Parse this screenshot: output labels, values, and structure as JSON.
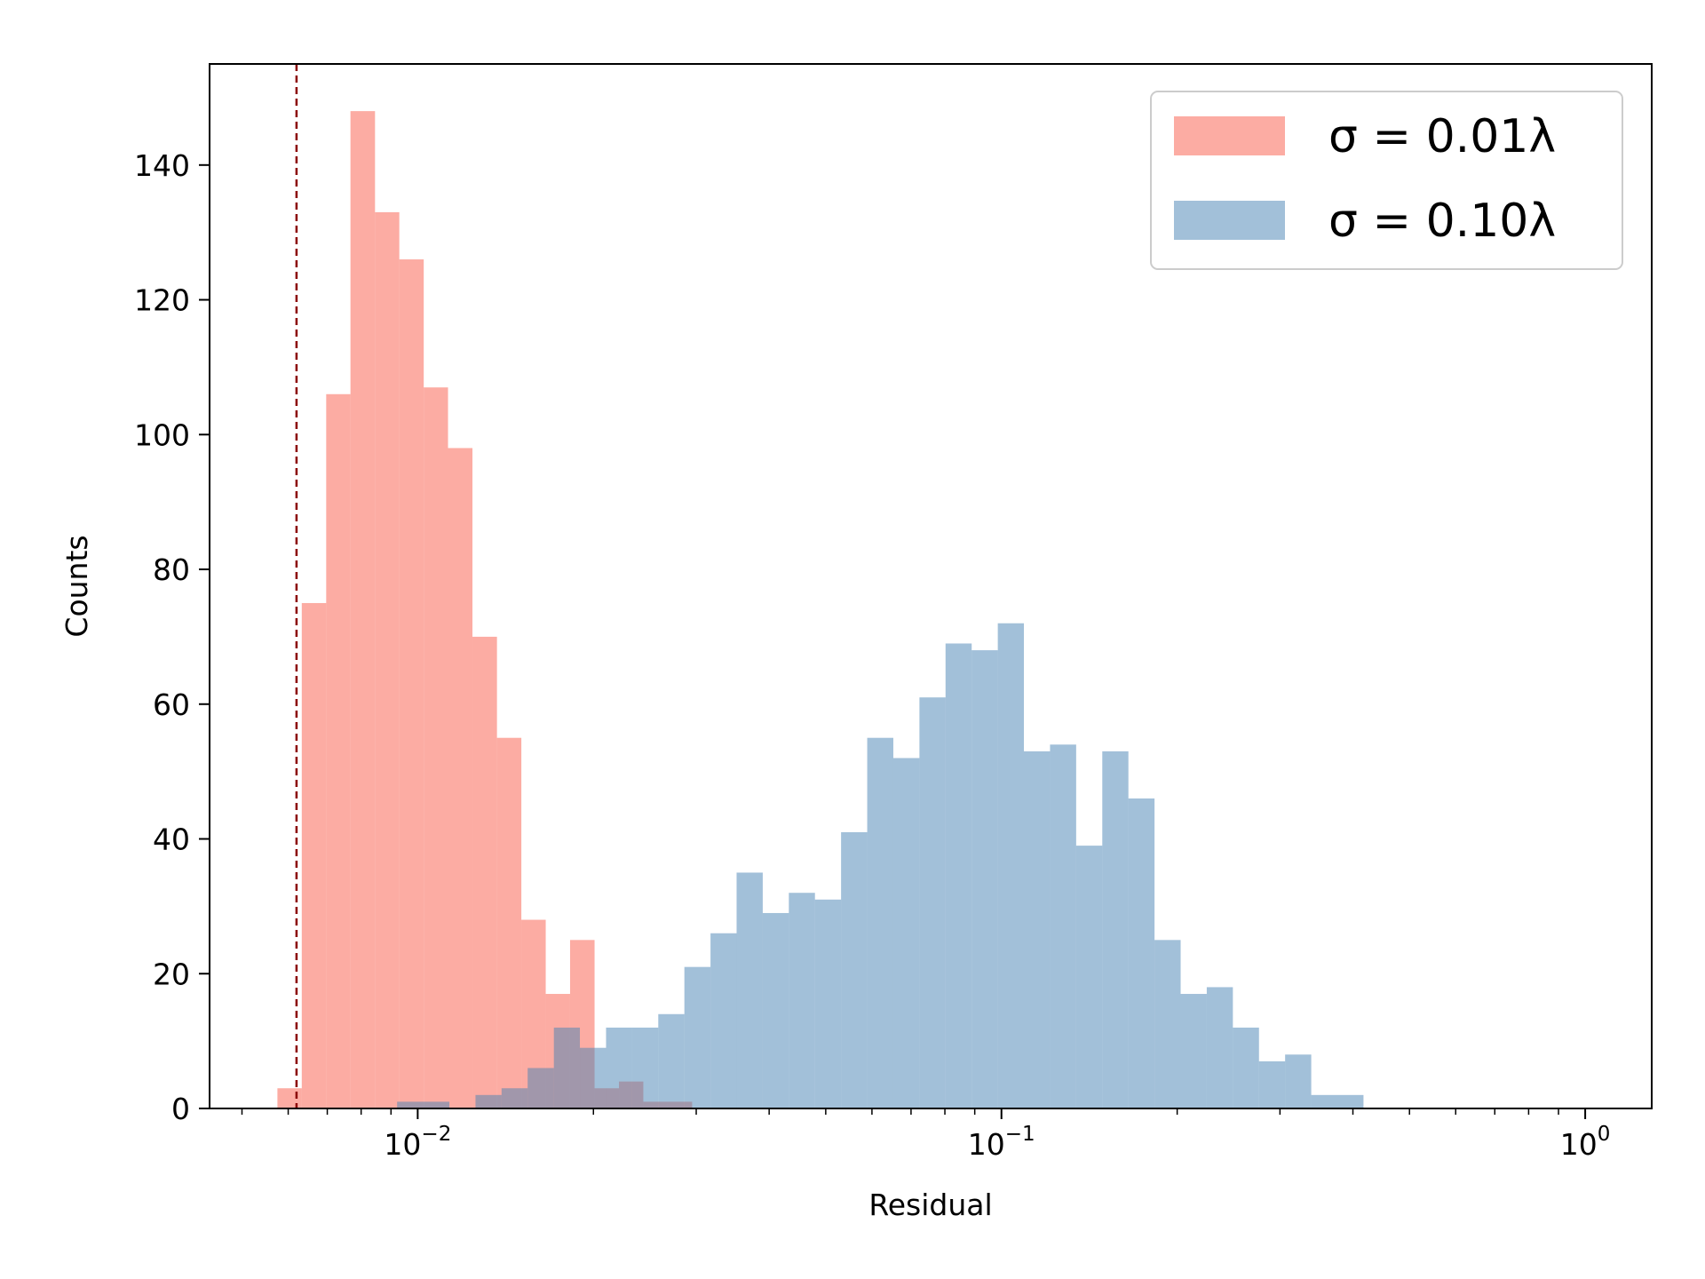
{
  "chart_data": {
    "type": "bar",
    "subtype": "histogram",
    "x_scale": "log",
    "xlabel": "Residual",
    "ylabel": "Counts",
    "xlim": [
      0.0044,
      1.3
    ],
    "ylim": [
      0,
      155
    ],
    "x_ticks": [
      {
        "value": 0.01,
        "base": "10",
        "exp": "−2"
      },
      {
        "value": 0.1,
        "base": "10",
        "exp": "−1"
      },
      {
        "value": 1,
        "base": "10",
        "exp": "0"
      }
    ],
    "y_ticks": [
      0,
      20,
      40,
      60,
      80,
      100,
      120,
      140
    ],
    "grid": false,
    "legend_position": "top-right",
    "reference_line": {
      "x": 0.0062,
      "style": "dashed",
      "color": "#8b0000"
    },
    "series": [
      {
        "name": "σ = 0.01λ",
        "color": "#fa8072",
        "opacity": 0.65,
        "bins": [
          {
            "x0": 0.00575,
            "x1": 0.00633,
            "count": 3
          },
          {
            "x0": 0.00633,
            "x1": 0.00697,
            "count": 75
          },
          {
            "x0": 0.00697,
            "x1": 0.00767,
            "count": 106
          },
          {
            "x0": 0.00767,
            "x1": 0.00845,
            "count": 148
          },
          {
            "x0": 0.00845,
            "x1": 0.0093,
            "count": 133
          },
          {
            "x0": 0.0093,
            "x1": 0.01024,
            "count": 126
          },
          {
            "x0": 0.01024,
            "x1": 0.01127,
            "count": 107
          },
          {
            "x0": 0.01127,
            "x1": 0.01241,
            "count": 98
          },
          {
            "x0": 0.01241,
            "x1": 0.01367,
            "count": 70
          },
          {
            "x0": 0.01367,
            "x1": 0.01505,
            "count": 55
          },
          {
            "x0": 0.01505,
            "x1": 0.01657,
            "count": 28
          },
          {
            "x0": 0.01657,
            "x1": 0.01824,
            "count": 17
          },
          {
            "x0": 0.01824,
            "x1": 0.02009,
            "count": 25
          },
          {
            "x0": 0.02009,
            "x1": 0.02212,
            "count": 3
          },
          {
            "x0": 0.02212,
            "x1": 0.02435,
            "count": 4
          },
          {
            "x0": 0.02435,
            "x1": 0.02681,
            "count": 1
          },
          {
            "x0": 0.02681,
            "x1": 0.02952,
            "count": 1
          }
        ]
      },
      {
        "name": "σ = 0.10λ",
        "color": "#4682b4",
        "opacity": 0.5,
        "bins": [
          {
            "x0": 0.00922,
            "x1": 0.01022,
            "count": 1
          },
          {
            "x0": 0.01022,
            "x1": 0.01133,
            "count": 1
          },
          {
            "x0": 0.01256,
            "x1": 0.01392,
            "count": 2
          },
          {
            "x0": 0.01392,
            "x1": 0.01543,
            "count": 3
          },
          {
            "x0": 0.01543,
            "x1": 0.01711,
            "count": 6
          },
          {
            "x0": 0.01711,
            "x1": 0.01896,
            "count": 12
          },
          {
            "x0": 0.01896,
            "x1": 0.02102,
            "count": 9
          },
          {
            "x0": 0.02102,
            "x1": 0.0233,
            "count": 12
          },
          {
            "x0": 0.0233,
            "x1": 0.02583,
            "count": 12
          },
          {
            "x0": 0.02583,
            "x1": 0.02863,
            "count": 14
          },
          {
            "x0": 0.02863,
            "x1": 0.03174,
            "count": 21
          },
          {
            "x0": 0.03174,
            "x1": 0.03518,
            "count": 26
          },
          {
            "x0": 0.03518,
            "x1": 0.039,
            "count": 35
          },
          {
            "x0": 0.039,
            "x1": 0.04323,
            "count": 29
          },
          {
            "x0": 0.04323,
            "x1": 0.04792,
            "count": 32
          },
          {
            "x0": 0.04792,
            "x1": 0.05312,
            "count": 31
          },
          {
            "x0": 0.05312,
            "x1": 0.05889,
            "count": 41
          },
          {
            "x0": 0.05889,
            "x1": 0.06528,
            "count": 55
          },
          {
            "x0": 0.06528,
            "x1": 0.07236,
            "count": 52
          },
          {
            "x0": 0.07236,
            "x1": 0.08021,
            "count": 61
          },
          {
            "x0": 0.08021,
            "x1": 0.08892,
            "count": 69
          },
          {
            "x0": 0.08892,
            "x1": 0.09857,
            "count": 68
          },
          {
            "x0": 0.09857,
            "x1": 0.10926,
            "count": 72
          },
          {
            "x0": 0.10926,
            "x1": 0.12112,
            "count": 53
          },
          {
            "x0": 0.12112,
            "x1": 0.13427,
            "count": 54
          },
          {
            "x0": 0.13427,
            "x1": 0.14884,
            "count": 39
          },
          {
            "x0": 0.14884,
            "x1": 0.16499,
            "count": 53
          },
          {
            "x0": 0.16499,
            "x1": 0.1829,
            "count": 46
          },
          {
            "x0": 0.1829,
            "x1": 0.20275,
            "count": 25
          },
          {
            "x0": 0.20275,
            "x1": 0.22475,
            "count": 17
          },
          {
            "x0": 0.22475,
            "x1": 0.24914,
            "count": 18
          },
          {
            "x0": 0.24914,
            "x1": 0.27618,
            "count": 12
          },
          {
            "x0": 0.27618,
            "x1": 0.30615,
            "count": 7
          },
          {
            "x0": 0.30615,
            "x1": 0.33937,
            "count": 8
          },
          {
            "x0": 0.33937,
            "x1": 0.3762,
            "count": 2
          },
          {
            "x0": 0.3762,
            "x1": 0.41703,
            "count": 2
          }
        ]
      }
    ]
  }
}
